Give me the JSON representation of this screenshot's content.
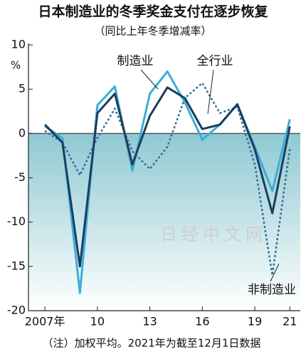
{
  "chart_data": {
    "type": "line",
    "title": "日本制造业的冬季奖金支付在逐步恢复",
    "subtitle": "（同比上年冬季增减率）",
    "y_label": "%",
    "note": "（注）加权平均。2021年为截至12月1日数据",
    "watermark": "日经中文网",
    "x": [
      2007,
      2008,
      2009,
      2010,
      2011,
      2012,
      2013,
      2014,
      2015,
      2016,
      2017,
      2018,
      2019,
      2020,
      2021
    ],
    "series": [
      {
        "name": "制造业",
        "color": "#3aaed8",
        "dash": false,
        "values": [
          0.8,
          -0.5,
          -18,
          3.2,
          5.3,
          -4.2,
          4.5,
          7.0,
          3.5,
          -0.7,
          1.0,
          3.3,
          -1.5,
          -6.5,
          1.6
        ]
      },
      {
        "name": "全行业",
        "color": "#1b3d5e",
        "dash": false,
        "values": [
          1.0,
          -1.0,
          -15,
          2.3,
          4.5,
          -3.5,
          2.0,
          5.2,
          4.0,
          0.5,
          1.0,
          3.3,
          -1.8,
          -9.0,
          0.8
        ]
      },
      {
        "name": "非制造业",
        "color": "#2f6f9a",
        "dash": true,
        "values": [
          0.3,
          -1.0,
          -4.7,
          -0.5,
          2.8,
          -2.0,
          -4.0,
          -1.5,
          4.0,
          5.7,
          2.3,
          3.0,
          -3.5,
          -16.0,
          -1.7
        ]
      }
    ],
    "xlim": [
      2006.06,
      2021.6
    ],
    "xticks": [
      {
        "value": 2007,
        "label": "2007年"
      },
      {
        "value": 2010,
        "label": "10"
      },
      {
        "value": 2013,
        "label": "13"
      },
      {
        "value": 2016,
        "label": "16"
      },
      {
        "value": 2019,
        "label": "19"
      },
      {
        "value": 2021,
        "label": "21"
      }
    ],
    "ylim": [
      -20,
      10
    ],
    "yticks": [
      10,
      5,
      0,
      -5,
      -10,
      -15,
      -20
    ]
  }
}
